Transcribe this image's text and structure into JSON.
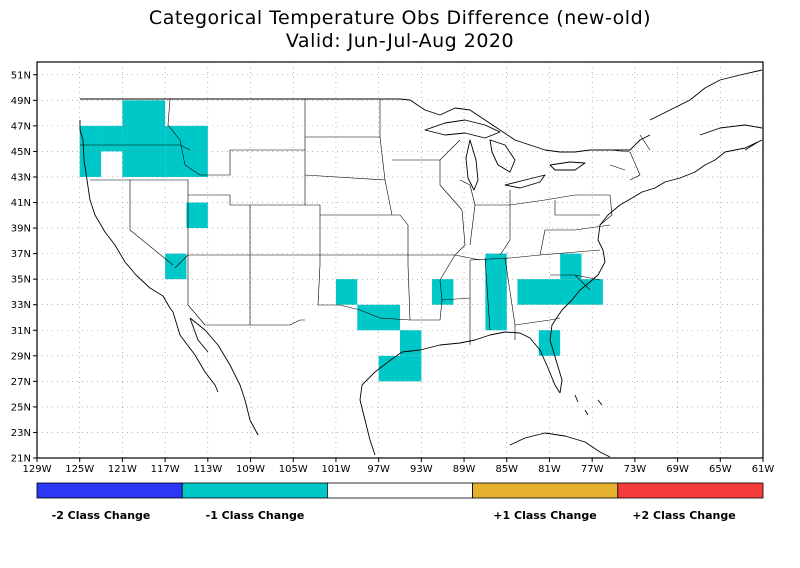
{
  "title_line1": "Categorical Temperature Obs Difference (new-old)",
  "title_line2": "Valid: Jun-Jul-Aug 2020",
  "map": {
    "lon_range": [
      -129,
      -61
    ],
    "lat_range": [
      21,
      52
    ],
    "grid": "dotted",
    "x_ticks": [
      {
        "lon": -129,
        "label": "129W"
      },
      {
        "lon": -125,
        "label": "125W"
      },
      {
        "lon": -121,
        "label": "121W"
      },
      {
        "lon": -117,
        "label": "117W"
      },
      {
        "lon": -113,
        "label": "113W"
      },
      {
        "lon": -109,
        "label": "109W"
      },
      {
        "lon": -105,
        "label": "105W"
      },
      {
        "lon": -101,
        "label": "101W"
      },
      {
        "lon": -97,
        "label": "97W"
      },
      {
        "lon": -93,
        "label": "93W"
      },
      {
        "lon": -89,
        "label": "89W"
      },
      {
        "lon": -85,
        "label": "85W"
      },
      {
        "lon": -81,
        "label": "81W"
      },
      {
        "lon": -77,
        "label": "77W"
      },
      {
        "lon": -73,
        "label": "73W"
      },
      {
        "lon": -69,
        "label": "69W"
      },
      {
        "lon": -65,
        "label": "65W"
      },
      {
        "lon": -61,
        "label": "61W"
      }
    ],
    "y_ticks": [
      {
        "lat": 21,
        "label": "21N"
      },
      {
        "lat": 23,
        "label": "23N"
      },
      {
        "lat": 25,
        "label": "25N"
      },
      {
        "lat": 27,
        "label": "27N"
      },
      {
        "lat": 29,
        "label": "29N"
      },
      {
        "lat": 31,
        "label": "31N"
      },
      {
        "lat": 33,
        "label": "33N"
      },
      {
        "lat": 35,
        "label": "35N"
      },
      {
        "lat": 37,
        "label": "37N"
      },
      {
        "lat": 39,
        "label": "39N"
      },
      {
        "lat": 41,
        "label": "41N"
      },
      {
        "lat": 43,
        "label": "43N"
      },
      {
        "lat": 45,
        "label": "45N"
      },
      {
        "lat": 47,
        "label": "47N"
      },
      {
        "lat": 49,
        "label": "49N"
      },
      {
        "lat": 51,
        "label": "51N"
      }
    ],
    "fill_color": "#00c8c8",
    "cells_minus1": [
      [
        -125,
        43,
        2,
        4
      ],
      [
        -123,
        45,
        2,
        2
      ],
      [
        -121,
        43,
        4,
        6
      ],
      [
        -117,
        43,
        4,
        4
      ],
      [
        -115,
        39,
        2,
        2
      ],
      [
        -117,
        35,
        2,
        2
      ],
      [
        -101,
        33,
        2,
        2
      ],
      [
        -99,
        31,
        4,
        2
      ],
      [
        -97,
        27,
        4,
        2
      ],
      [
        -95,
        29,
        2,
        2
      ],
      [
        -92,
        33,
        2,
        2
      ],
      [
        -87,
        31,
        2,
        6
      ],
      [
        -84,
        33,
        6,
        2
      ],
      [
        -82,
        29,
        2,
        2
      ],
      [
        -80,
        35,
        2,
        2
      ],
      [
        -78,
        33,
        2,
        2
      ]
    ]
  },
  "legend": {
    "colors": [
      "#2a38f5",
      "#00c8c8",
      "#ffffff",
      "#e6b030",
      "#f53c3c"
    ],
    "labels": [
      "-2 Class Change",
      "-1 Class Change",
      "+1 Class Change",
      "+2 Class Change"
    ]
  }
}
